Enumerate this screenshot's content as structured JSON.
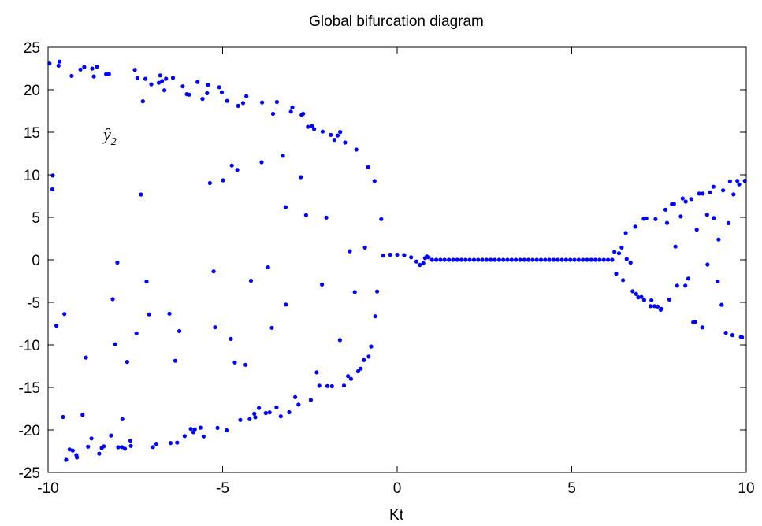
{
  "chart_data": {
    "type": "scatter",
    "title": "Global bifurcation diagram",
    "xlabel": "Kt",
    "ylabel": "",
    "xlim": [
      -10,
      10
    ],
    "ylim": [
      -25,
      25
    ],
    "xticks": [
      -10,
      -5,
      0,
      5,
      10
    ],
    "yticks": [
      25,
      20,
      15,
      10,
      5,
      0,
      -5,
      -10,
      -15,
      -20,
      -25
    ],
    "grid": false,
    "marker_color": "#0000ff",
    "annotation": {
      "text": "ŷ",
      "subscript": "2"
    },
    "series": [
      {
        "regime": "chaotic",
        "x_range": [
          -10,
          -0.45
        ],
        "envelope_amplitude_at_x_min": 24,
        "samples_per_x": 16
      },
      {
        "regime": "fixed-point",
        "x_range": [
          -0.45,
          6.2
        ],
        "value": 0,
        "transient_points": [
          {
            "x": -0.4,
            "y": 0.5
          },
          {
            "x": -0.2,
            "y": 0.6
          },
          {
            "x": 0.0,
            "y": 0.6
          },
          {
            "x": 0.2,
            "y": 0.55
          },
          {
            "x": 0.4,
            "y": 0.3
          },
          {
            "x": 0.55,
            "y": -0.2
          },
          {
            "x": 0.65,
            "y": -0.6
          },
          {
            "x": 0.75,
            "y": -0.4
          },
          {
            "x": 0.8,
            "y": 0.2
          },
          {
            "x": 0.85,
            "y": 0.4
          },
          {
            "x": 0.9,
            "y": 0.3
          }
        ]
      },
      {
        "regime": "chaotic",
        "x_range": [
          6.2,
          10
        ],
        "envelope_amplitude_at_x_max": 9.8,
        "samples_per_x": 16
      }
    ]
  }
}
